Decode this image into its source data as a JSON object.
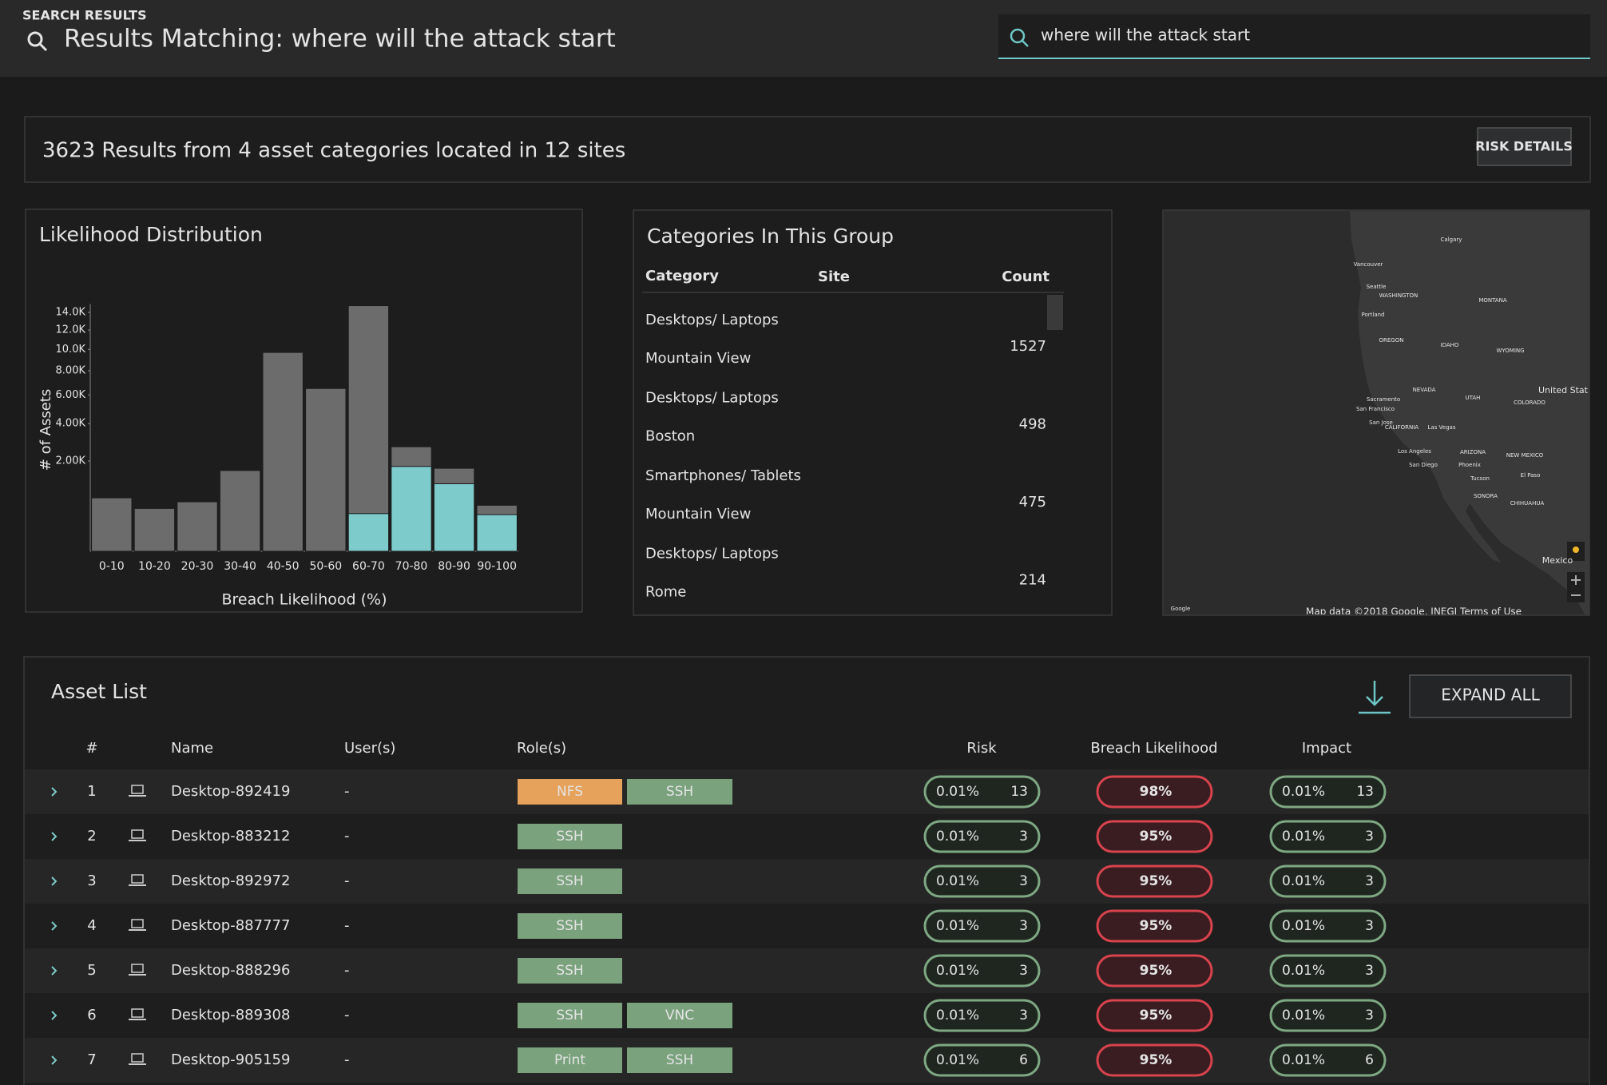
{
  "header": {
    "kicker": "SEARCH RESULTS",
    "title": "Results Matching: where will the attack start"
  },
  "search": {
    "query": "where will the attack start"
  },
  "summary": {
    "text": "3623 Results from 4 asset categories located in 12 sites",
    "button": "RISK DETAILS"
  },
  "chart_data": {
    "type": "bar",
    "stacked": true,
    "yscale": "sqrt",
    "title": "Likelihood Distribution",
    "xlabel": "Breach Likelihood (%)",
    "ylabel": "# of Assets",
    "categories": [
      "0-10",
      "10-20",
      "20-30",
      "30-40",
      "40-50",
      "50-60",
      "60-70",
      "70-80",
      "80-90",
      "90-100"
    ],
    "series": [
      {
        "color": "#7ecbcb",
        "values": [
          0,
          0,
          0,
          0,
          0,
          0,
          350,
          1770,
          1120,
          330
        ]
      },
      {
        "color": "#6c6c6c",
        "values": [
          700,
          450,
          600,
          1600,
          9700,
          6500,
          14450,
          910,
          570,
          190
        ]
      }
    ],
    "ylim": [
      0,
      15000
    ],
    "yticks": [
      {
        "value": 2000,
        "label": "2.00K"
      },
      {
        "value": 4000,
        "label": "4.00K"
      },
      {
        "value": 6000,
        "label": "6.00K"
      },
      {
        "value": 8000,
        "label": "8.00K"
      },
      {
        "value": 10000,
        "label": "10.0K"
      },
      {
        "value": 12000,
        "label": "12.0K"
      },
      {
        "value": 14000,
        "label": "14.0K"
      }
    ],
    "grid": false
  },
  "categories_panel": {
    "title": "Categories In This Group",
    "columns": [
      "Category",
      "Site",
      "Count"
    ],
    "rows": [
      {
        "category": "Desktops/ Laptops",
        "site": "Mountain View",
        "count": 1527
      },
      {
        "category": "Desktops/ Laptops",
        "site": "Boston",
        "count": 498
      },
      {
        "category": "Smartphones/ Tablets",
        "site": "Mountain View",
        "count": 475
      },
      {
        "category": "Desktops/ Laptops",
        "site": "Rome",
        "count": 214
      }
    ]
  },
  "map": {
    "labels": [
      "Calgary",
      "Vancouver",
      "Seattle",
      "WASHINGTON",
      "Portland",
      "MONTANA",
      "OREGON",
      "IDAHO",
      "WYOMING",
      "NEVADA",
      "UTAH",
      "United Stat",
      "COLORADO",
      "Sacramento",
      "San Francisco",
      "San Jose",
      "CALIFORNIA",
      "Las Vegas",
      "Los Angeles",
      "ARIZONA",
      "NEW MEXICO",
      "San Diego",
      "Phoenix",
      "Tucson",
      "El Paso",
      "SONORA",
      "CHIHUAHUA",
      "Mexico",
      "Google",
      "Map data ©2018 Google, INEGI  Terms of Use"
    ]
  },
  "asset_list": {
    "title": "Asset List",
    "button": "EXPAND ALL",
    "columns": [
      "#",
      "Name",
      "User(s)",
      "Role(s)",
      "Risk",
      "Breach Likelihood",
      "Impact"
    ],
    "rows": [
      {
        "index": 1,
        "name": "Desktop-892419",
        "users": "-",
        "roles": [
          {
            "name": "NFS",
            "color": "#e6a15b"
          },
          {
            "name": "SSH",
            "color": "#7aa27d"
          }
        ],
        "risk": "0.01%",
        "risk_score": 13,
        "breach": "98%",
        "impact": "0.01%",
        "impact_score": 13
      },
      {
        "index": 2,
        "name": "Desktop-883212",
        "users": "-",
        "roles": [
          {
            "name": "SSH",
            "color": "#7aa27d"
          }
        ],
        "risk": "0.01%",
        "risk_score": 3,
        "breach": "95%",
        "impact": "0.01%",
        "impact_score": 3
      },
      {
        "index": 3,
        "name": "Desktop-892972",
        "users": "-",
        "roles": [
          {
            "name": "SSH",
            "color": "#7aa27d"
          }
        ],
        "risk": "0.01%",
        "risk_score": 3,
        "breach": "95%",
        "impact": "0.01%",
        "impact_score": 3
      },
      {
        "index": 4,
        "name": "Desktop-887777",
        "users": "-",
        "roles": [
          {
            "name": "SSH",
            "color": "#7aa27d"
          }
        ],
        "risk": "0.01%",
        "risk_score": 3,
        "breach": "95%",
        "impact": "0.01%",
        "impact_score": 3
      },
      {
        "index": 5,
        "name": "Desktop-888296",
        "users": "-",
        "roles": [
          {
            "name": "SSH",
            "color": "#7aa27d"
          }
        ],
        "risk": "0.01%",
        "risk_score": 3,
        "breach": "95%",
        "impact": "0.01%",
        "impact_score": 3
      },
      {
        "index": 6,
        "name": "Desktop-889308",
        "users": "-",
        "roles": [
          {
            "name": "SSH",
            "color": "#7aa27d"
          },
          {
            "name": "VNC",
            "color": "#7aa27d"
          }
        ],
        "risk": "0.01%",
        "risk_score": 3,
        "breach": "95%",
        "impact": "0.01%",
        "impact_score": 3
      },
      {
        "index": 7,
        "name": "Desktop-905159",
        "users": "-",
        "roles": [
          {
            "name": "Print",
            "color": "#7aa27d"
          },
          {
            "name": "SSH",
            "color": "#7aa27d"
          }
        ],
        "risk": "0.01%",
        "risk_score": 6,
        "breach": "95%",
        "impact": "0.01%",
        "impact_score": 6
      }
    ]
  }
}
